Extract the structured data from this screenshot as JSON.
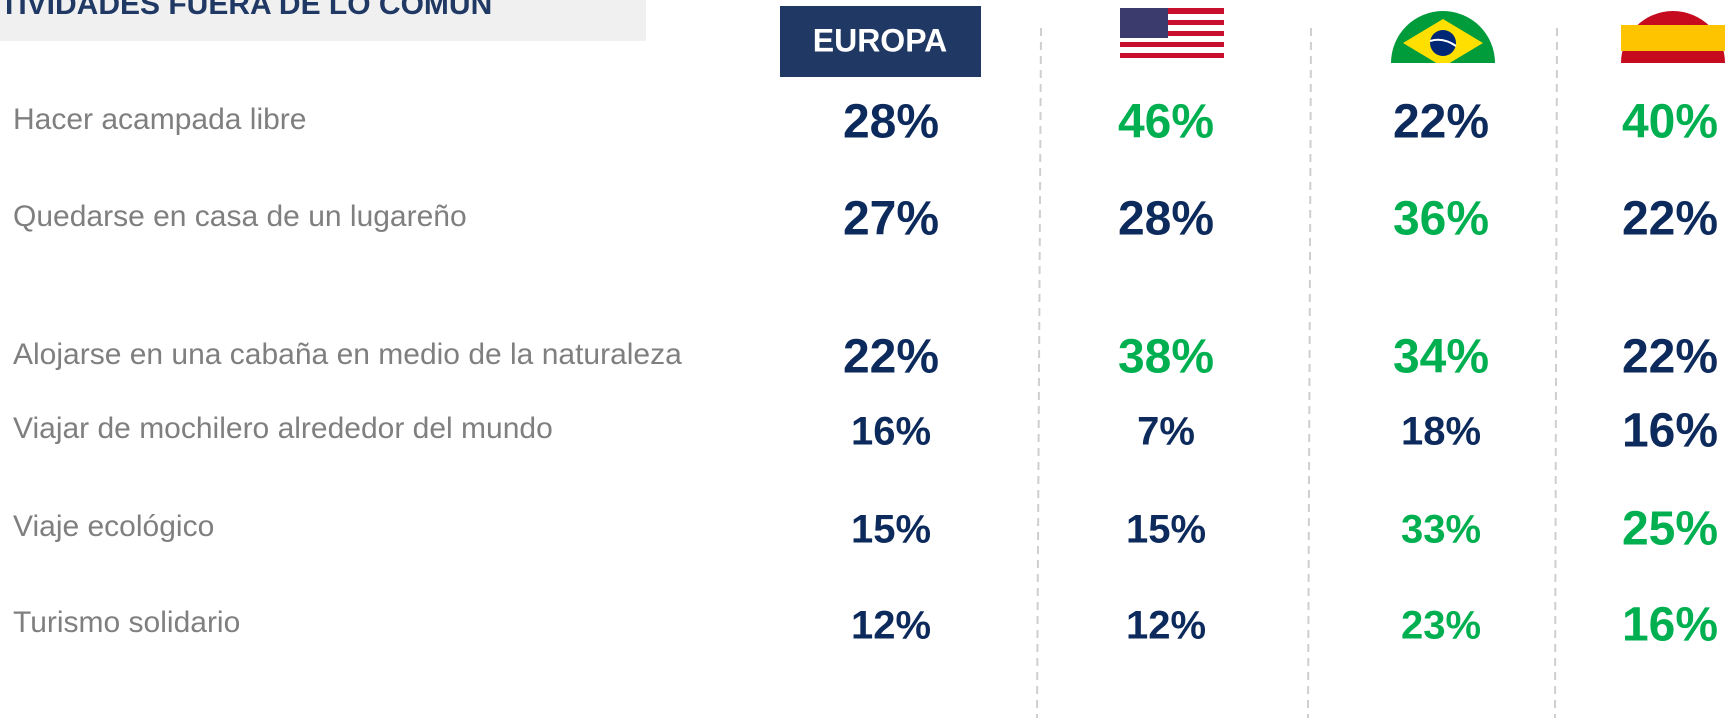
{
  "header": {
    "title": "TIVIDADES FUERA DE LO COMÚN",
    "region": "EUROPA"
  },
  "table": {
    "rows": [
      {
        "label": "Hacer acampada libre",
        "cells": [
          {
            "text": "28%",
            "color": "#0d2a5c"
          },
          {
            "text": "46%",
            "color": "#00b050"
          },
          {
            "text": "22%",
            "color": "#0d2a5c"
          },
          {
            "text": "40%",
            "color": "#00b050"
          }
        ]
      },
      {
        "label": "Quedarse en casa de un lugareño",
        "cells": [
          {
            "text": "27%",
            "color": "#0d2a5c"
          },
          {
            "text": "28%",
            "color": "#0d2a5c"
          },
          {
            "text": "36%",
            "color": "#00b050"
          },
          {
            "text": "22%",
            "color": "#0d2a5c"
          }
        ]
      },
      {
        "label": "Alojarse en una cabaña en medio de la naturaleza",
        "cells": [
          {
            "text": "22%",
            "color": "#0d2a5c"
          },
          {
            "text": "38%",
            "color": "#00b050"
          },
          {
            "text": "34%",
            "color": "#00b050"
          },
          {
            "text": "22%",
            "color": "#0d2a5c"
          }
        ]
      },
      {
        "label": "Viajar de mochilero alrededor del mundo",
        "cells": [
          {
            "text": "16%",
            "color": "#0d2a5c"
          },
          {
            "text": "7%",
            "color": "#0d2a5c"
          },
          {
            "text": "18%",
            "color": "#0d2a5c"
          },
          {
            "text": "16%",
            "color": "#0d2a5c"
          }
        ]
      },
      {
        "label": "Viaje ecológico",
        "cells": [
          {
            "text": "15%",
            "color": "#0d2a5c"
          },
          {
            "text": "15%",
            "color": "#0d2a5c"
          },
          {
            "text": "33%",
            "color": "#00b050"
          },
          {
            "text": "25%",
            "color": "#00b050"
          }
        ]
      },
      {
        "label": "Turismo solidario",
        "cells": [
          {
            "text": "12%",
            "color": "#0d2a5c"
          },
          {
            "text": "12%",
            "color": "#0d2a5c"
          },
          {
            "text": "23%",
            "color": "#00b050"
          },
          {
            "text": "16%",
            "color": "#00b050"
          }
        ]
      }
    ]
  }
}
